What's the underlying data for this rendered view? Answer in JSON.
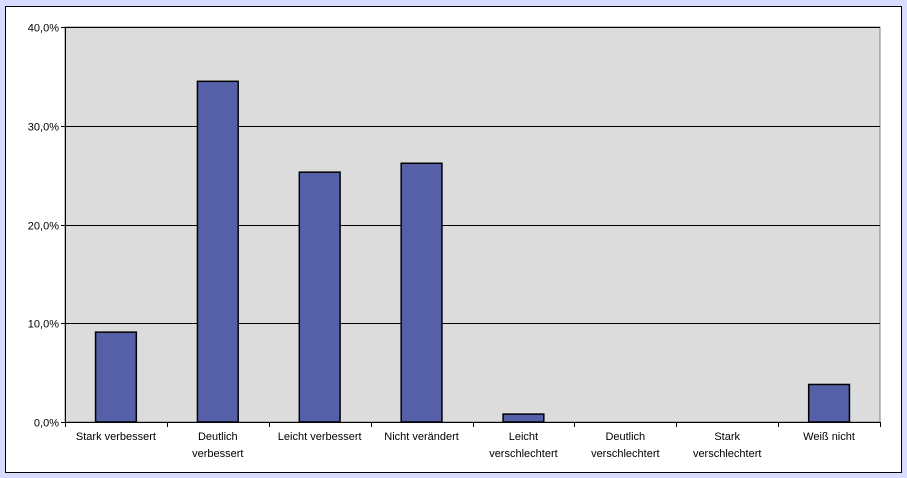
{
  "chart_data": {
    "type": "bar",
    "title": "",
    "xlabel": "",
    "ylabel": "",
    "ylim": [
      0,
      40
    ],
    "yticks": [
      0,
      10,
      20,
      30,
      40
    ],
    "ytick_labels": [
      "0,0%",
      "10,0%",
      "20,0%",
      "30,0%",
      "40,0%"
    ],
    "grid": true,
    "categories": [
      [
        "Stark verbessert"
      ],
      [
        "Deutlich",
        "verbessert"
      ],
      [
        "Leicht verbessert"
      ],
      [
        "Nicht verändert"
      ],
      [
        "Leicht",
        "verschlechtert"
      ],
      [
        "Deutlich",
        "verschlechtert"
      ],
      [
        "Stark",
        "verschlechtert"
      ],
      [
        "Weiß nicht"
      ]
    ],
    "values": [
      9.1,
      34.5,
      25.3,
      26.2,
      0.8,
      0.0,
      0.0,
      3.8
    ],
    "colors": {
      "bar": "#5560a8",
      "plot_bg": "#dcdcdc",
      "outer_bg": "#d9dcff",
      "grid": "#000000"
    }
  }
}
